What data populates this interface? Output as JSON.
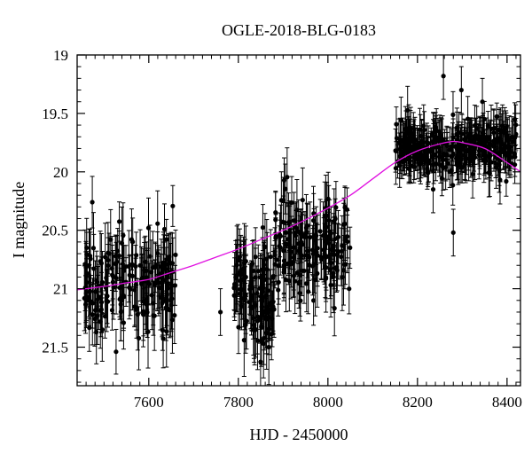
{
  "chart_data": {
    "type": "scatter",
    "title": "OGLE-2018-BLG-0183",
    "xlabel": "HJD - 2450000",
    "ylabel": "I magnitude",
    "xlim": [
      7440,
      8430
    ],
    "ylim": [
      21.83,
      19.0
    ],
    "y_inverted": true,
    "grid": false,
    "x_ticks": [
      7600,
      7800,
      8000,
      8200,
      8400
    ],
    "x_tick_labels": [
      "7600",
      "7800",
      "8000",
      "8200",
      "8400"
    ],
    "y_ticks": [
      19,
      19.5,
      20,
      20.5,
      21,
      21.5
    ],
    "y_tick_labels": [
      "19",
      "19.5",
      "20",
      "20.5",
      "21",
      "21.5"
    ],
    "marker_color": "#000000",
    "model_color": "#e010e0",
    "series": [
      {
        "kind": "observations",
        "segments": [
          {
            "x_start": 7455,
            "x_end": 7660,
            "y_mean": 20.95,
            "y_spread": 0.42,
            "err_mean": 0.24,
            "n": 190
          },
          {
            "x_start": 7790,
            "x_end": 7880,
            "y_mean": 21.05,
            "y_spread": 0.42,
            "err_mean": 0.26,
            "n": 110
          },
          {
            "x_start": 7880,
            "x_end": 8050,
            "y_mean": 20.65,
            "y_spread": 0.4,
            "err_mean": 0.24,
            "n": 160
          },
          {
            "x_start": 8150,
            "x_end": 8420,
            "y_mean": 19.8,
            "y_spread": 0.22,
            "err_mean": 0.16,
            "n": 320
          }
        ],
        "outliers": [
          {
            "x": 8258,
            "y": 19.18
          },
          {
            "x": 8298,
            "y": 19.3
          },
          {
            "x": 8345,
            "y": 19.4
          },
          {
            "x": 8280,
            "y": 20.52
          },
          {
            "x": 8235,
            "y": 20.15
          },
          {
            "x": 7760,
            "y": 21.2
          }
        ]
      },
      {
        "kind": "model",
        "points": [
          [
            7440,
            21.01
          ],
          [
            7500,
            20.98
          ],
          [
            7550,
            20.95
          ],
          [
            7600,
            20.92
          ],
          [
            7650,
            20.86
          ],
          [
            7700,
            20.8
          ],
          [
            7750,
            20.73
          ],
          [
            7800,
            20.66
          ],
          [
            7850,
            20.58
          ],
          [
            7900,
            20.5
          ],
          [
            7950,
            20.41
          ],
          [
            8000,
            20.31
          ],
          [
            8050,
            20.2
          ],
          [
            8100,
            20.06
          ],
          [
            8150,
            19.92
          ],
          [
            8200,
            19.82
          ],
          [
            8250,
            19.76
          ],
          [
            8280,
            19.74
          ],
          [
            8300,
            19.75
          ],
          [
            8350,
            19.8
          ],
          [
            8400,
            19.92
          ],
          [
            8430,
            20.0
          ]
        ]
      }
    ]
  }
}
